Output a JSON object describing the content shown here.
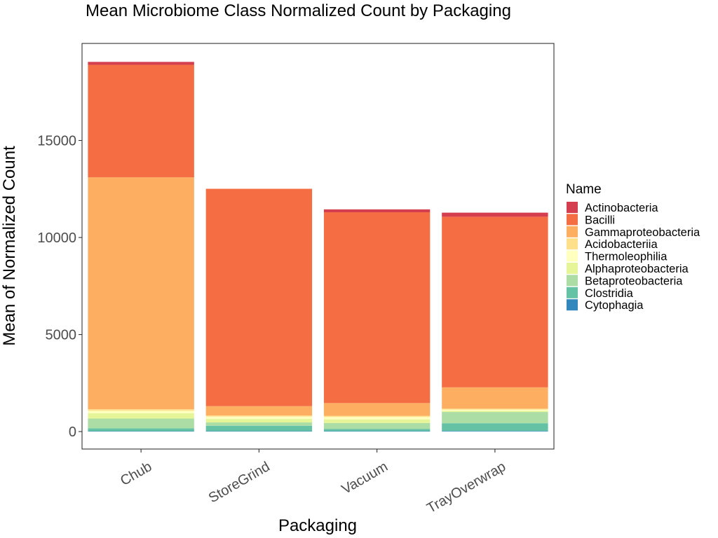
{
  "chart_data": {
    "type": "bar",
    "stacked": true,
    "title": "Mean Microbiome Class Normalized Count by Packaging",
    "xlabel": "Packaging",
    "ylabel": "Mean of Normalized Count",
    "categories": [
      "Chub",
      "StoreGrind",
      "Vacuum",
      "TrayOverwrap"
    ],
    "ylim": [
      -900,
      20000
    ],
    "yticks": [
      0,
      5000,
      10000,
      15000
    ],
    "ytick_labels": [
      "0",
      "5000",
      "10000",
      "15000"
    ],
    "grid": false,
    "legend": {
      "title": "Name",
      "position": "right"
    },
    "series": [
      {
        "name": "Cytophagia",
        "color": "#3288bd",
        "values": [
          20,
          20,
          20,
          30
        ]
      },
      {
        "name": "Clostridia",
        "color": "#66c2a5",
        "values": [
          150,
          280,
          120,
          400
        ]
      },
      {
        "name": "Betaproteobacteria",
        "color": "#abdda4",
        "values": [
          500,
          170,
          300,
          580
        ]
      },
      {
        "name": "Alphaproteobacteria",
        "color": "#e6f598",
        "values": [
          280,
          180,
          190,
          60
        ]
      },
      {
        "name": "Thermoleophilia",
        "color": "#ffffbf",
        "values": [
          120,
          120,
          120,
          60
        ]
      },
      {
        "name": "Acidobacteriia",
        "color": "#fee08b",
        "values": [
          80,
          60,
          60,
          50
        ]
      },
      {
        "name": "Gammaproteobacteria",
        "color": "#fdae61",
        "values": [
          11950,
          480,
          660,
          1100
        ]
      },
      {
        "name": "Bacilli",
        "color": "#f46d43",
        "values": [
          5800,
          11200,
          9830,
          8790
        ]
      },
      {
        "name": "Actinobacteria",
        "color": "#d53e4f",
        "values": [
          150,
          0,
          150,
          210
        ]
      }
    ],
    "legend_order": [
      "Actinobacteria",
      "Bacilli",
      "Gammaproteobacteria",
      "Acidobacteriia",
      "Thermoleophilia",
      "Alphaproteobacteria",
      "Betaproteobacteria",
      "Clostridia",
      "Cytophagia"
    ]
  }
}
